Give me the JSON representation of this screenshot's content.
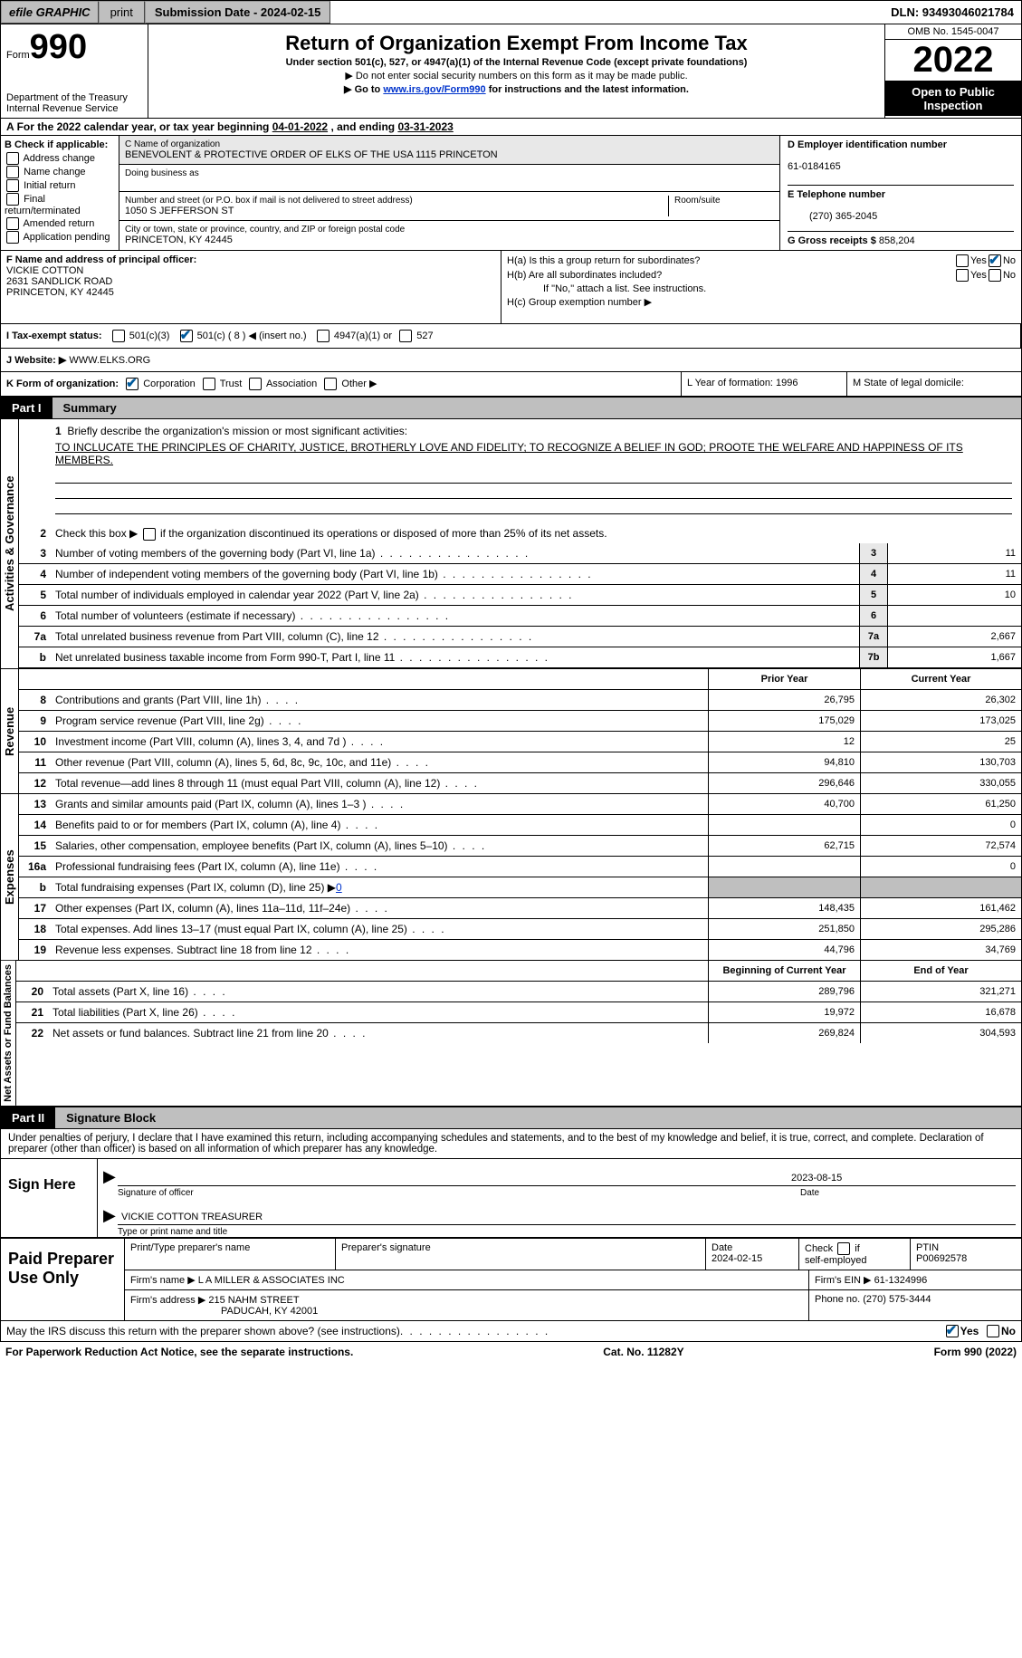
{
  "topbar": {
    "efile": "efile GRAPHIC",
    "print": "print",
    "submission": "Submission Date - 2024-02-15",
    "dln": "DLN: 93493046021784"
  },
  "header": {
    "form_word": "Form",
    "form_num": "990",
    "title": "Return of Organization Exempt From Income Tax",
    "subtitle": "Under section 501(c), 527, or 4947(a)(1) of the Internal Revenue Code (except private foundations)",
    "note1": "▶ Do not enter social security numbers on this form as it may be made public.",
    "note2_pre": "▶ Go to ",
    "note2_link": "www.irs.gov/Form990",
    "note2_post": " for instructions and the latest information.",
    "dept": "Department of the Treasury",
    "irs": "Internal Revenue Service",
    "omb": "OMB No. 1545-0047",
    "year": "2022",
    "inspect": "Open to Public Inspection"
  },
  "rowA": {
    "label": "A",
    "text_pre": "For the 2022 calendar year, or tax year beginning ",
    "begin": "04-01-2022",
    "mid": "   , and ending ",
    "end": "03-31-2023"
  },
  "boxB": {
    "title": "B Check if applicable:",
    "items": [
      "Address change",
      "Name change",
      "Initial return",
      "Final return/terminated",
      "Amended return",
      "Application pending"
    ]
  },
  "boxC": {
    "name_label": "C Name of organization",
    "name": "BENEVOLENT & PROTECTIVE ORDER OF ELKS OF THE USA 1115 PRINCETON",
    "dba_label": "Doing business as",
    "addr_label": "Number and street (or P.O. box if mail is not delivered to street address)",
    "room_label": "Room/suite",
    "addr": "1050 S JEFFERSON ST",
    "city_label": "City or town, state or province, country, and ZIP or foreign postal code",
    "city": "PRINCETON, KY  42445"
  },
  "boxD": {
    "ein_label": "D Employer identification number",
    "ein": "61-0184165",
    "phone_label": "E Telephone number",
    "phone": "(270) 365-2045",
    "gross_label": "G Gross receipts $ ",
    "gross": "858,204"
  },
  "boxF": {
    "label": "F  Name and address of principal officer:",
    "name": "VICKIE COTTON",
    "addr1": "2631 SANDLICK ROAD",
    "addr2": "PRINCETON, KY  42445"
  },
  "boxH": {
    "ha": "H(a)  Is this a group return for subordinates?",
    "hb": "H(b)  Are all subordinates included?",
    "hb_note": "If \"No,\" attach a list. See instructions.",
    "hc": "H(c)  Group exemption number ▶",
    "yes": "Yes",
    "no": "No"
  },
  "rowI": {
    "label": "I  Tax-exempt status:",
    "o1": "501(c)(3)",
    "o2": "501(c) ( 8 ) ◀ (insert no.)",
    "o3": "4947(a)(1) or",
    "o4": "527"
  },
  "rowJ": {
    "label": "J  Website: ▶",
    "value": " WWW.ELKS.ORG"
  },
  "rowK": {
    "label": "K Form of organization:",
    "o1": "Corporation",
    "o2": "Trust",
    "o3": "Association",
    "o4": "Other ▶",
    "L": "L Year of formation: 1996",
    "M": "M State of legal domicile:"
  },
  "partI": {
    "label": "Part I",
    "title": "Summary"
  },
  "summary": {
    "sideA": "Activities & Governance",
    "sideR": "Revenue",
    "sideE": "Expenses",
    "sideN": "Net Assets or Fund Balances",
    "l1_label": "Briefly describe the organization's mission or most significant activities:",
    "l1_text": "TO INCLUCATE THE PRINCIPLES OF CHARITY, JUSTICE, BROTHERLY LOVE AND FIDELITY; TO RECOGNIZE A BELIEF IN GOD; PROOTE THE WELFARE AND HAPPINESS OF ITS MEMBERS.",
    "l2": "Check this box ▶       if the organization discontinued its operations or disposed of more than 25% of its net assets.",
    "lines_num": [
      {
        "n": "3",
        "t": "Number of voting members of the governing body (Part VI, line 1a)",
        "b": "3",
        "v": "11"
      },
      {
        "n": "4",
        "t": "Number of independent voting members of the governing body (Part VI, line 1b)",
        "b": "4",
        "v": "11"
      },
      {
        "n": "5",
        "t": "Total number of individuals employed in calendar year 2022 (Part V, line 2a)",
        "b": "5",
        "v": "10"
      },
      {
        "n": "6",
        "t": "Total number of volunteers (estimate if necessary)",
        "b": "6",
        "v": ""
      },
      {
        "n": "7a",
        "t": "Total unrelated business revenue from Part VIII, column (C), line 12",
        "b": "7a",
        "v": "2,667"
      },
      {
        "n": "b",
        "t": "Net unrelated business taxable income from Form 990-T, Part I, line 11",
        "b": "7b",
        "v": "1,667"
      }
    ],
    "col_prior": "Prior Year",
    "col_curr": "Current Year",
    "rev": [
      {
        "n": "8",
        "t": "Contributions and grants (Part VIII, line 1h)",
        "p": "26,795",
        "c": "26,302"
      },
      {
        "n": "9",
        "t": "Program service revenue (Part VIII, line 2g)",
        "p": "175,029",
        "c": "173,025"
      },
      {
        "n": "10",
        "t": "Investment income (Part VIII, column (A), lines 3, 4, and 7d )",
        "p": "12",
        "c": "25"
      },
      {
        "n": "11",
        "t": "Other revenue (Part VIII, column (A), lines 5, 6d, 8c, 9c, 10c, and 11e)",
        "p": "94,810",
        "c": "130,703"
      },
      {
        "n": "12",
        "t": "Total revenue—add lines 8 through 11 (must equal Part VIII, column (A), line 12)",
        "p": "296,646",
        "c": "330,055"
      }
    ],
    "exp": [
      {
        "n": "13",
        "t": "Grants and similar amounts paid (Part IX, column (A), lines 1–3 )",
        "p": "40,700",
        "c": "61,250"
      },
      {
        "n": "14",
        "t": "Benefits paid to or for members (Part IX, column (A), line 4)",
        "p": "",
        "c": "0"
      },
      {
        "n": "15",
        "t": "Salaries, other compensation, employee benefits (Part IX, column (A), lines 5–10)",
        "p": "62,715",
        "c": "72,574"
      },
      {
        "n": "16a",
        "t": "Professional fundraising fees (Part IX, column (A), line 11e)",
        "p": "",
        "c": "0"
      }
    ],
    "l16b_t": "Total fundraising expenses (Part IX, column (D), line 25) ▶",
    "l16b_v": "0",
    "exp2": [
      {
        "n": "17",
        "t": "Other expenses (Part IX, column (A), lines 11a–11d, 11f–24e)",
        "p": "148,435",
        "c": "161,462"
      },
      {
        "n": "18",
        "t": "Total expenses. Add lines 13–17 (must equal Part IX, column (A), line 25)",
        "p": "251,850",
        "c": "295,286"
      },
      {
        "n": "19",
        "t": "Revenue less expenses. Subtract line 18 from line 12",
        "p": "44,796",
        "c": "34,769"
      }
    ],
    "col_begin": "Beginning of Current Year",
    "col_end": "End of Year",
    "net": [
      {
        "n": "20",
        "t": "Total assets (Part X, line 16)",
        "p": "289,796",
        "c": "321,271"
      },
      {
        "n": "21",
        "t": "Total liabilities (Part X, line 26)",
        "p": "19,972",
        "c": "16,678"
      },
      {
        "n": "22",
        "t": "Net assets or fund balances. Subtract line 21 from line 20",
        "p": "269,824",
        "c": "304,593"
      }
    ]
  },
  "partII": {
    "label": "Part II",
    "title": "Signature Block"
  },
  "sig": {
    "perjury": "Under penalties of perjury, I declare that I have examined this return, including accompanying schedules and statements, and to the best of my knowledge and belief, it is true, correct, and complete. Declaration of preparer (other than officer) is based on all information of which preparer has any knowledge.",
    "sign_here": "Sign Here",
    "sig_officer": "Signature of officer",
    "date_label": "Date",
    "date": "2023-08-15",
    "name_title": "VICKIE COTTON TREASURER",
    "type_name": "Type or print name and title"
  },
  "prep": {
    "title": "Paid Preparer Use Only",
    "r1c1": "Print/Type preparer's name",
    "r1c2": "Preparer's signature",
    "r1c3_l": "Date",
    "r1c3_v": "2024-02-15",
    "r1c4": "Check        if self-employed",
    "r1c5_l": "PTIN",
    "r1c5_v": "P00692578",
    "r2_l": "Firm's name     ▶",
    "r2_v": "L A MILLER & ASSOCIATES INC",
    "r2_ein_l": "Firm's EIN ▶",
    "r2_ein_v": "61-1324996",
    "r3_l": "Firm's address ▶",
    "r3_v1": "215 NAHM STREET",
    "r3_v2": "PADUCAH, KY  42001",
    "r3_ph_l": "Phone no. ",
    "r3_ph_v": "(270) 575-3444"
  },
  "footer": {
    "discuss": "May the IRS discuss this return with the preparer shown above? (see instructions)",
    "yes": "Yes",
    "no": "No",
    "pra": "For Paperwork Reduction Act Notice, see the separate instructions.",
    "cat": "Cat. No. 11282Y",
    "form": "Form 990 (2022)"
  }
}
